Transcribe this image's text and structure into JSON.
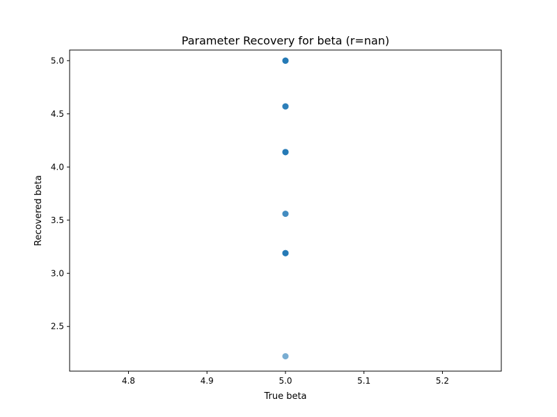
{
  "chart_data": {
    "type": "scatter",
    "title": "Parameter Recovery for beta (r=nan)",
    "xlabel": "True beta",
    "ylabel": "Recovered beta",
    "xlim": [
      4.725,
      5.275
    ],
    "ylim": [
      2.08,
      5.1
    ],
    "xticks": [
      "4.8",
      "4.9",
      "5.0",
      "5.1",
      "5.2"
    ],
    "yticks": [
      "2.5",
      "3.0",
      "3.5",
      "4.0",
      "4.5",
      "5.0"
    ],
    "grid": false,
    "marker_color": "#1f77b4",
    "marker_alpha": 0.6,
    "series": [
      {
        "x": [
          5.0,
          5.0,
          5.0,
          5.0,
          5.0,
          5.0,
          5.0,
          5.0,
          5.0,
          5.0,
          5.0,
          5.0,
          5.0,
          5.0,
          5.0,
          5.0,
          5.0,
          5.0
        ],
        "y": [
          5.0,
          5.0,
          5.0,
          5.0,
          4.57,
          4.57,
          4.57,
          4.14,
          4.14,
          4.14,
          4.14,
          3.56,
          3.56,
          3.19,
          3.19,
          3.19,
          3.19,
          2.22
        ]
      }
    ]
  }
}
